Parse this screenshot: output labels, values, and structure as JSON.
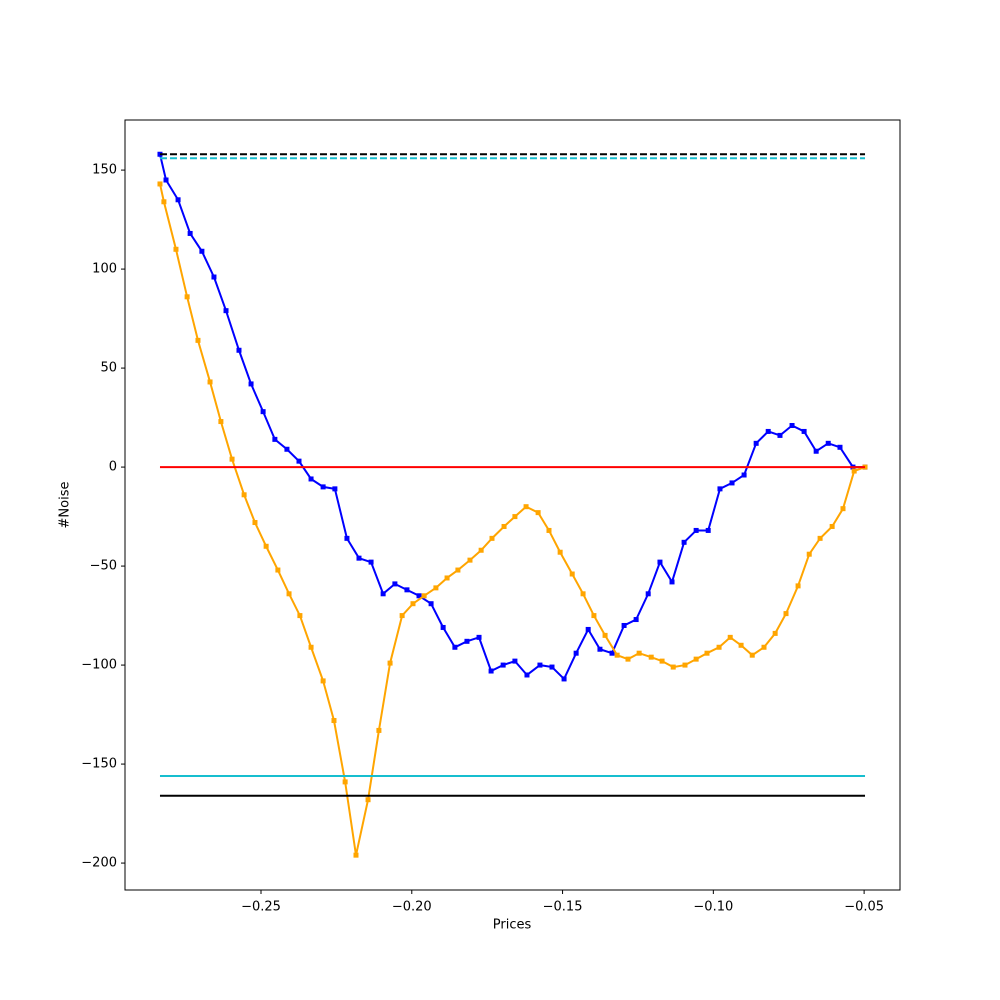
{
  "chart_data": {
    "type": "line",
    "xlabel": "Prices",
    "ylabel": "#Noise",
    "xlim": [
      -0.2951,
      -0.0381
    ],
    "ylim": [
      -213.6,
      175.3
    ],
    "xticks": [
      {
        "value": -0.25,
        "label": "−0.25"
      },
      {
        "value": -0.2,
        "label": "−0.20"
      },
      {
        "value": -0.15,
        "label": "−0.15"
      },
      {
        "value": -0.1,
        "label": "−0.10"
      },
      {
        "value": -0.05,
        "label": "−0.05"
      }
    ],
    "yticks": [
      {
        "value": -200,
        "label": "−200"
      },
      {
        "value": -150,
        "label": "−150"
      },
      {
        "value": -100,
        "label": "−100"
      },
      {
        "value": -50,
        "label": "−50"
      },
      0,
      50,
      100,
      150
    ],
    "series": [
      {
        "color": "#0000ff",
        "linestyle": "solid",
        "marker": "square",
        "x": [
          -0.2835,
          -0.2815,
          -0.2775,
          -0.2735,
          -0.2696,
          -0.2656,
          -0.2616,
          -0.2573,
          -0.2533,
          -0.2493,
          -0.2454,
          -0.2414,
          -0.2374,
          -0.2334,
          -0.2294,
          -0.2255,
          -0.2215,
          -0.2175,
          -0.2135,
          -0.2095,
          -0.2056,
          -0.2016,
          -0.1976,
          -0.1936,
          -0.1896,
          -0.1857,
          -0.1817,
          -0.1777,
          -0.1737,
          -0.1697,
          -0.1658,
          -0.1618,
          -0.1575,
          -0.1535,
          -0.1495,
          -0.1455,
          -0.1415,
          -0.1376,
          -0.1336,
          -0.1296,
          -0.1256,
          -0.1216,
          -0.1177,
          -0.1137,
          -0.1097,
          -0.1057,
          -0.1017,
          -0.0978,
          -0.0938,
          -0.0898,
          -0.0858,
          -0.0818,
          -0.0779,
          -0.0739,
          -0.0699,
          -0.0659,
          -0.0619,
          -0.058,
          -0.0537,
          -0.0497
        ],
        "values": [
          158,
          145,
          135,
          118,
          109,
          96,
          79,
          59,
          42,
          28,
          14,
          9,
          3,
          -6,
          -10,
          -11,
          -36,
          -46,
          -48,
          -64,
          -59,
          -62,
          -65,
          -69,
          -81,
          -91,
          -88,
          -86,
          -103,
          -100,
          -98,
          -105,
          -100,
          -101,
          -107,
          -94,
          -82,
          -92,
          -94,
          -80,
          -77,
          -64,
          -48,
          -58,
          -38,
          -32,
          -32,
          -11,
          -8,
          -4,
          12,
          18,
          16,
          21,
          18,
          8,
          12,
          10,
          0,
          0
        ]
      },
      {
        "color": "#ffa500",
        "linestyle": "solid",
        "marker": "square",
        "x": [
          -0.2835,
          -0.2822,
          -0.2782,
          -0.2745,
          -0.2709,
          -0.2669,
          -0.2633,
          -0.2596,
          -0.2556,
          -0.252,
          -0.2483,
          -0.2444,
          -0.2407,
          -0.2371,
          -0.2334,
          -0.2294,
          -0.2258,
          -0.2221,
          -0.2185,
          -0.2145,
          -0.2109,
          -0.2072,
          -0.2032,
          -0.1996,
          -0.1959,
          -0.192,
          -0.1883,
          -0.1847,
          -0.1807,
          -0.177,
          -0.1734,
          -0.1694,
          -0.1658,
          -0.1621,
          -0.1581,
          -0.1545,
          -0.1508,
          -0.1468,
          -0.1432,
          -0.1396,
          -0.1359,
          -0.1319,
          -0.1283,
          -0.1246,
          -0.1206,
          -0.117,
          -0.1133,
          -0.1094,
          -0.1057,
          -0.1021,
          -0.0981,
          -0.0944,
          -0.0908,
          -0.0871,
          -0.0832,
          -0.0795,
          -0.0759,
          -0.0719,
          -0.0682,
          -0.0646,
          -0.0606,
          -0.057,
          -0.0533,
          -0.0497
        ],
        "values": [
          143,
          134,
          110,
          86,
          64,
          43,
          23,
          4,
          -14,
          -28,
          -40,
          -52,
          -64,
          -75,
          -91,
          -108,
          -128,
          -159,
          -196,
          -168,
          -133,
          -99,
          -75,
          -69,
          -65,
          -61,
          -56,
          -52,
          -47,
          -42,
          -36,
          -30,
          -25,
          -20,
          -23,
          -32,
          -43,
          -54,
          -64,
          -75,
          -85,
          -95,
          -97,
          -94,
          -96,
          -98,
          -101,
          -100,
          -97,
          -94,
          -91,
          -86,
          -90,
          -95,
          -91,
          -84,
          -74,
          -60,
          -44,
          -36,
          -30,
          -21,
          -2,
          0
        ]
      },
      {
        "color": "#000000",
        "linestyle": "dashed",
        "x": [
          -0.2835,
          -0.0497
        ],
        "values": [
          158,
          158
        ]
      },
      {
        "color": "#17becf",
        "linestyle": "dashed",
        "x": [
          -0.2835,
          -0.0497
        ],
        "values": [
          156,
          156
        ]
      },
      {
        "color": "#ff0000",
        "linestyle": "solid",
        "x": [
          -0.2835,
          -0.0497
        ],
        "values": [
          0,
          0
        ]
      },
      {
        "color": "#17becf",
        "linestyle": "solid",
        "x": [
          -0.2835,
          -0.0497
        ],
        "values": [
          -156,
          -156
        ]
      },
      {
        "color": "#000000",
        "linestyle": "solid",
        "x": [
          -0.2835,
          -0.0497
        ],
        "values": [
          -166,
          -166
        ]
      }
    ]
  }
}
